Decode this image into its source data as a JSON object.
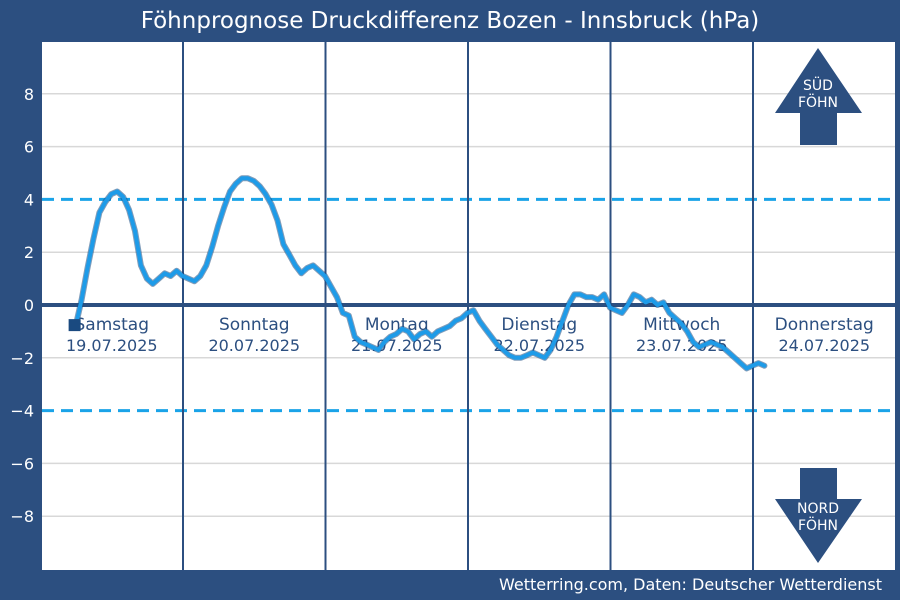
{
  "title": "Föhnprognose Druckdifferenz Bozen - Innsbruck (hPa)",
  "source": "Wetterring.com, Daten: Deutscher Wetterdienst",
  "arrow_up": {
    "line1": "SÜD",
    "line2": "FÖHN"
  },
  "arrow_down": {
    "line1": "NORD",
    "line2": "FÖHN"
  },
  "colors": {
    "frame": "#2c4f80",
    "plot_bg": "#ffffff",
    "series": "#1e9be8",
    "series_outline": "#1a4a80",
    "threshold": "#1aa3e8",
    "zero_line": "#2c4f80",
    "grid": "#d8d8d8",
    "day_divider": "#2c4f80",
    "day_text": "#2c4f80",
    "arrow": "#2c4f80"
  },
  "chart_data": {
    "type": "line",
    "title": "Föhnprognose Druckdifferenz Bozen - Innsbruck (hPa)",
    "xlabel": "",
    "ylabel": "",
    "ylim": [
      -10,
      10
    ],
    "xlim": [
      0,
      144
    ],
    "yticks": [
      8,
      6,
      4,
      2,
      0,
      -2,
      -4,
      -6,
      -8
    ],
    "ytick_labels": [
      "8",
      "6",
      "4",
      "2",
      "0",
      "−2",
      "−4",
      "−6",
      "−8"
    ],
    "grid": true,
    "thresholds": [
      4,
      -4
    ],
    "zero_line": 0,
    "x_unit": "hours since 19.07.2025 00:00",
    "days": [
      {
        "name": "Samstag",
        "date": "19.07.2025"
      },
      {
        "name": "Sonntag",
        "date": "20.07.2025"
      },
      {
        "name": "Montag",
        "date": "21.07.2025"
      },
      {
        "name": "Dienstag",
        "date": "22.07.2025"
      },
      {
        "name": "Mittwoch",
        "date": "23.07.2025"
      },
      {
        "name": "Donnerstag",
        "date": "24.07.2025"
      }
    ],
    "series": [
      {
        "name": "",
        "points": [
          [
            6,
            -0.8
          ],
          [
            7,
            0.2
          ],
          [
            8,
            1.4
          ],
          [
            9,
            2.5
          ],
          [
            10,
            3.5
          ],
          [
            11,
            3.9
          ],
          [
            12,
            4.2
          ],
          [
            13,
            4.3
          ],
          [
            14,
            4.1
          ],
          [
            15,
            3.6
          ],
          [
            16,
            2.8
          ],
          [
            17,
            1.5
          ],
          [
            18,
            1.0
          ],
          [
            19,
            0.8
          ],
          [
            20,
            1.0
          ],
          [
            21,
            1.2
          ],
          [
            22,
            1.1
          ],
          [
            23,
            1.3
          ],
          [
            24,
            1.1
          ],
          [
            25,
            1.0
          ],
          [
            26,
            0.9
          ],
          [
            27,
            1.1
          ],
          [
            28,
            1.5
          ],
          [
            29,
            2.2
          ],
          [
            30,
            3.0
          ],
          [
            31,
            3.7
          ],
          [
            32,
            4.3
          ],
          [
            33,
            4.6
          ],
          [
            34,
            4.8
          ],
          [
            35,
            4.8
          ],
          [
            36,
            4.7
          ],
          [
            37,
            4.5
          ],
          [
            38,
            4.2
          ],
          [
            39,
            3.8
          ],
          [
            40,
            3.2
          ],
          [
            41,
            2.3
          ],
          [
            42,
            1.9
          ],
          [
            43,
            1.5
          ],
          [
            44,
            1.2
          ],
          [
            45,
            1.4
          ],
          [
            46,
            1.5
          ],
          [
            47,
            1.3
          ],
          [
            48,
            1.1
          ],
          [
            49,
            0.7
          ],
          [
            50,
            0.3
          ],
          [
            51,
            -0.3
          ],
          [
            52,
            -0.4
          ],
          [
            53,
            -1.2
          ],
          [
            54,
            -1.4
          ],
          [
            55,
            -1.5
          ],
          [
            56,
            -1.6
          ],
          [
            57,
            -1.7
          ],
          [
            58,
            -1.4
          ],
          [
            59,
            -1.2
          ],
          [
            60,
            -1.1
          ],
          [
            61,
            -0.9
          ],
          [
            62,
            -1.0
          ],
          [
            63,
            -1.3
          ],
          [
            64,
            -1.1
          ],
          [
            65,
            -1.0
          ],
          [
            66,
            -1.2
          ],
          [
            67,
            -1.0
          ],
          [
            68,
            -0.9
          ],
          [
            69,
            -0.8
          ],
          [
            70,
            -0.6
          ],
          [
            71,
            -0.5
          ],
          [
            72,
            -0.3
          ],
          [
            73,
            -0.2
          ],
          [
            74,
            -0.6
          ],
          [
            75,
            -0.9
          ],
          [
            76,
            -1.2
          ],
          [
            77,
            -1.5
          ],
          [
            78,
            -1.7
          ],
          [
            79,
            -1.9
          ],
          [
            80,
            -2.0
          ],
          [
            81,
            -2.0
          ],
          [
            82,
            -1.9
          ],
          [
            83,
            -1.8
          ],
          [
            84,
            -1.9
          ],
          [
            85,
            -2.0
          ],
          [
            86,
            -1.7
          ],
          [
            87,
            -1.2
          ],
          [
            88,
            -0.6
          ],
          [
            89,
            0.0
          ],
          [
            90,
            0.4
          ],
          [
            91,
            0.4
          ],
          [
            92,
            0.3
          ],
          [
            93,
            0.3
          ],
          [
            94,
            0.2
          ],
          [
            95,
            0.4
          ],
          [
            96,
            -0.1
          ],
          [
            97,
            -0.2
          ],
          [
            98,
            -0.3
          ],
          [
            99,
            0.0
          ],
          [
            100,
            0.4
          ],
          [
            101,
            0.3
          ],
          [
            102,
            0.1
          ],
          [
            103,
            0.2
          ],
          [
            104,
            0.0
          ],
          [
            105,
            0.1
          ],
          [
            106,
            -0.3
          ],
          [
            107,
            -0.5
          ],
          [
            108,
            -0.7
          ],
          [
            109,
            -1.0
          ],
          [
            110,
            -1.4
          ],
          [
            111,
            -1.6
          ],
          [
            112,
            -1.5
          ],
          [
            113,
            -1.4
          ],
          [
            114,
            -1.5
          ],
          [
            115,
            -1.6
          ],
          [
            116,
            -1.8
          ],
          [
            117,
            -2.0
          ],
          [
            118,
            -2.2
          ],
          [
            119,
            -2.4
          ],
          [
            120,
            -2.3
          ],
          [
            121,
            -2.2
          ],
          [
            122,
            -2.3
          ]
        ]
      }
    ]
  }
}
